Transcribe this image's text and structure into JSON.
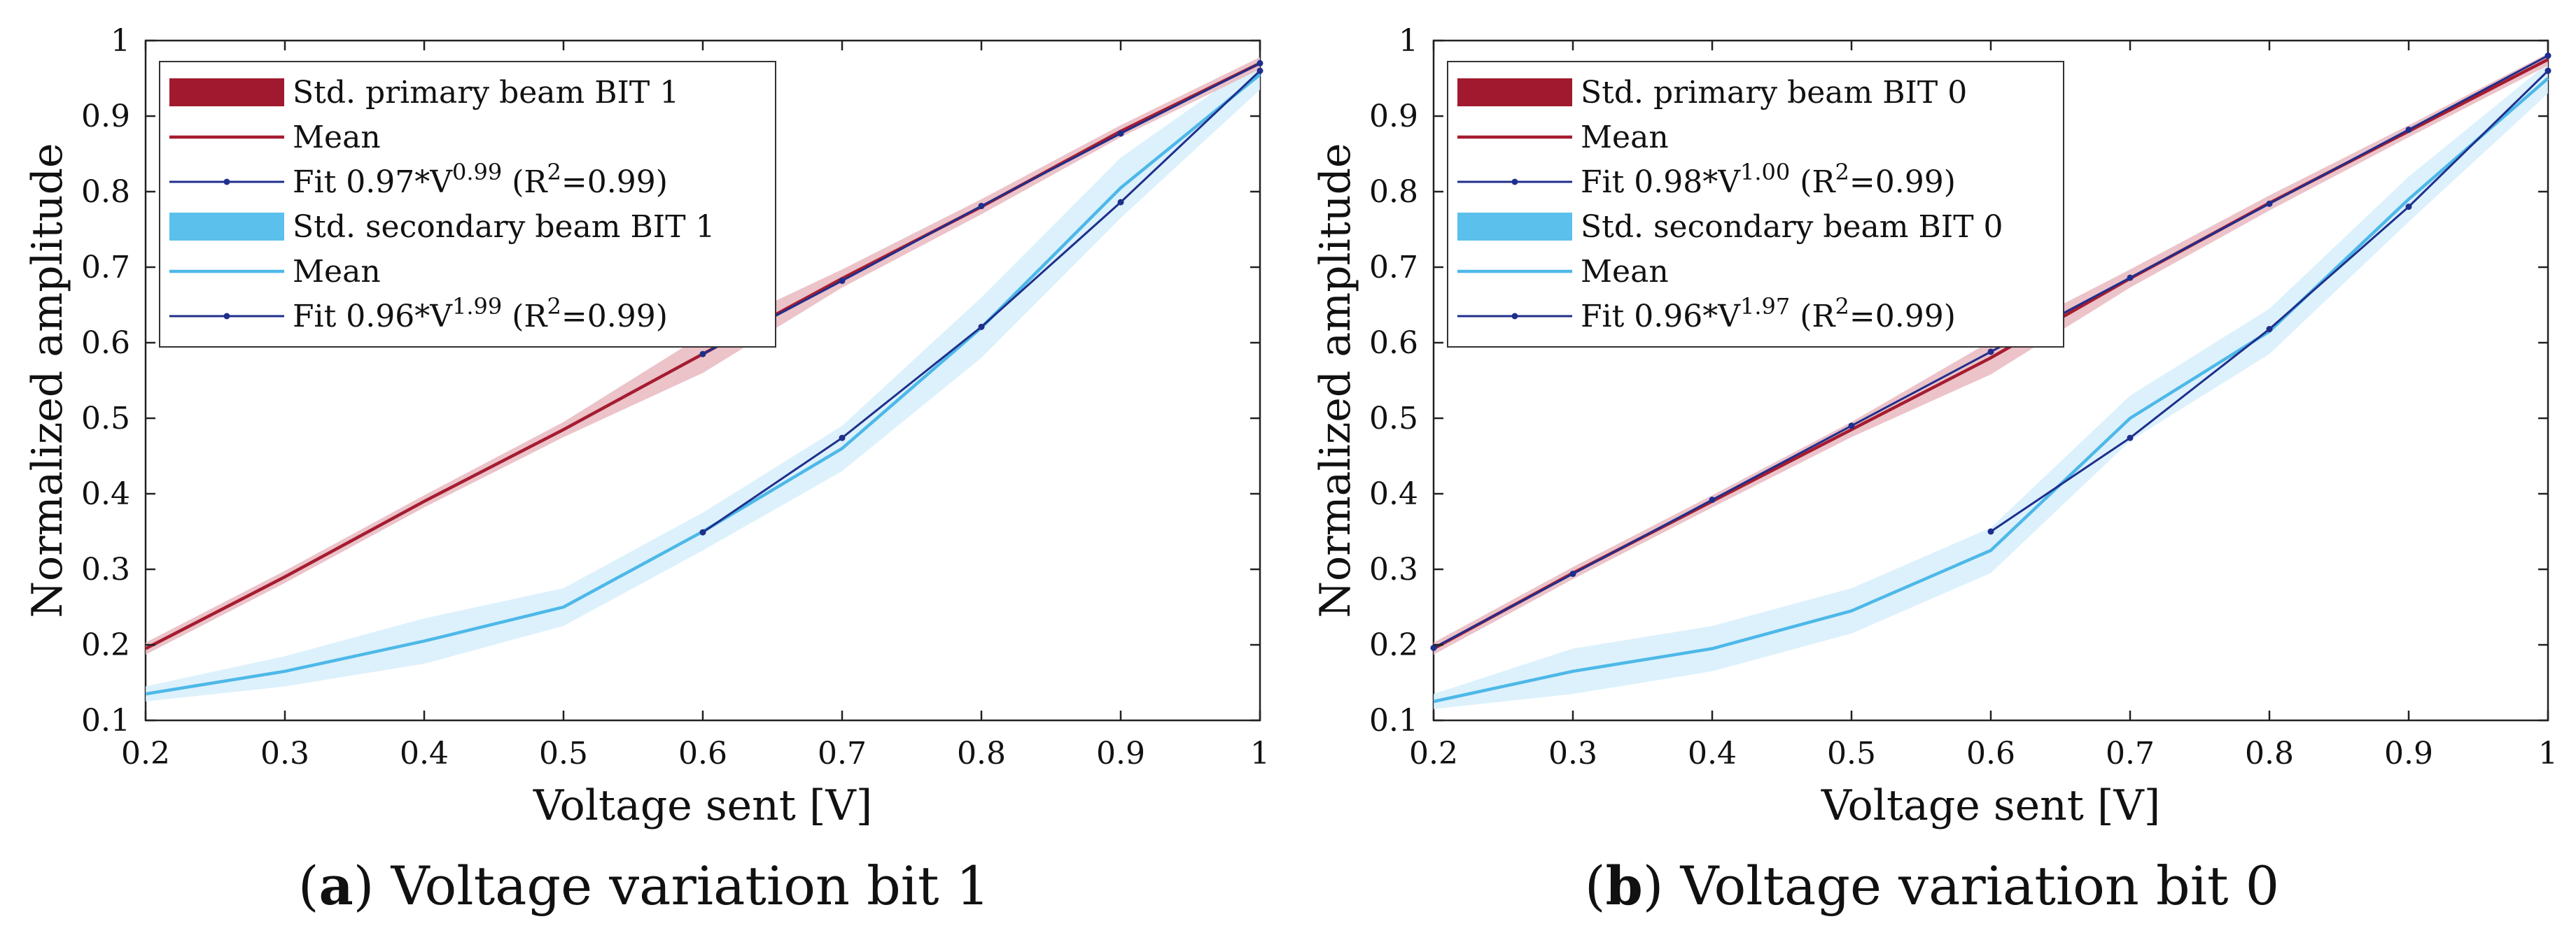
{
  "colors": {
    "primary_band": "#a0192e",
    "primary_band_light": "#e8b8bf",
    "primary_mean": "#a51c30",
    "secondary_band": "#5bc0eb",
    "secondary_band_light": "#d6effb",
    "secondary_mean": "#4db8e8",
    "fit": "#1f2f8c",
    "axis": "#222222"
  },
  "chart_data": [
    {
      "type": "line",
      "caption_letter": "a",
      "caption_text": "Voltage variation bit 1",
      "xlabel": "Voltage sent [V]",
      "ylabel": "Normalized amplitude",
      "xlim": [
        0.2,
        1
      ],
      "ylim": [
        0.1,
        1
      ],
      "x_ticks": [
        "0.2",
        "0.3",
        "0.4",
        "0.5",
        "0.6",
        "0.7",
        "0.8",
        "0.9",
        "1"
      ],
      "y_ticks": [
        "0.1",
        "0.2",
        "0.3",
        "0.4",
        "0.5",
        "0.6",
        "0.7",
        "0.8",
        "0.9",
        "1"
      ],
      "grid": false,
      "legend_position": "top-left",
      "legend": [
        {
          "kind": "band",
          "color": "primary_band",
          "label": "Std. primary beam BIT 1"
        },
        {
          "kind": "line",
          "color": "primary_mean",
          "label": "Mean"
        },
        {
          "kind": "fit",
          "color": "fit",
          "label": "Fit 0.97*V",
          "sup": "0.99",
          "tail": " (R",
          "sup2": "2",
          "tail2": "=0.99)"
        },
        {
          "kind": "band",
          "color": "secondary_band",
          "label": "Std. secondary beam BIT 1"
        },
        {
          "kind": "line",
          "color": "secondary_mean",
          "label": "Mean"
        },
        {
          "kind": "fit",
          "color": "fit",
          "label": "Fit 0.96*V",
          "sup": "1.99",
          "tail": " (R",
          "sup2": "2",
          "tail2": "=0.99)"
        }
      ],
      "x": [
        0.2,
        0.3,
        0.4,
        0.5,
        0.6,
        0.7,
        0.8,
        0.9,
        1.0
      ],
      "series": [
        {
          "name": "Std. primary beam BIT 1",
          "role": "primary",
          "mean": [
            0.195,
            0.29,
            0.39,
            0.485,
            0.585,
            0.685,
            0.78,
            0.88,
            0.97
          ],
          "std": [
            0.008,
            0.008,
            0.008,
            0.01,
            0.025,
            0.012,
            0.01,
            0.008,
            0.008
          ]
        },
        {
          "name": "Std. secondary beam BIT 1",
          "role": "secondary",
          "mean": [
            0.135,
            0.165,
            0.205,
            0.25,
            0.35,
            0.46,
            0.62,
            0.805,
            0.955
          ],
          "std": [
            0.01,
            0.02,
            0.03,
            0.025,
            0.025,
            0.03,
            0.04,
            0.04,
            0.02
          ]
        }
      ],
      "fits": [
        {
          "x": [
            0.6,
            0.7,
            0.8,
            0.9,
            1.0
          ],
          "y": [
            0.585,
            0.682,
            0.781,
            0.877,
            0.97
          ]
        },
        {
          "x": [
            0.6,
            0.7,
            0.8,
            0.9,
            1.0
          ],
          "y": [
            0.349,
            0.474,
            0.621,
            0.786,
            0.96
          ]
        }
      ]
    },
    {
      "type": "line",
      "caption_letter": "b",
      "caption_text": "Voltage variation bit 0",
      "xlabel": "Voltage sent [V]",
      "ylabel": "Normalized amplitude",
      "xlim": [
        0.2,
        1
      ],
      "ylim": [
        0.1,
        1
      ],
      "x_ticks": [
        "0.2",
        "0.3",
        "0.4",
        "0.5",
        "0.6",
        "0.7",
        "0.8",
        "0.9",
        "1"
      ],
      "y_ticks": [
        "0.1",
        "0.2",
        "0.3",
        "0.4",
        "0.5",
        "0.6",
        "0.7",
        "0.8",
        "0.9",
        "1"
      ],
      "grid": false,
      "legend_position": "top-left",
      "legend": [
        {
          "kind": "band",
          "color": "primary_band",
          "label": "Std. primary beam BIT 0"
        },
        {
          "kind": "line",
          "color": "primary_mean",
          "label": "Mean"
        },
        {
          "kind": "fit",
          "color": "fit",
          "label": "Fit 0.98*V",
          "sup": "1.00",
          "tail": " (R",
          "sup2": "2",
          "tail2": "=0.99)"
        },
        {
          "kind": "band",
          "color": "secondary_band",
          "label": "Std. secondary beam BIT 0"
        },
        {
          "kind": "line",
          "color": "secondary_mean",
          "label": "Mean"
        },
        {
          "kind": "fit",
          "color": "fit",
          "label": "Fit 0.96*V",
          "sup": "1.97",
          "tail": " (R",
          "sup2": "2",
          "tail2": "=0.99)"
        }
      ],
      "x": [
        0.2,
        0.3,
        0.4,
        0.5,
        0.6,
        0.7,
        0.8,
        0.9,
        1.0
      ],
      "series": [
        {
          "name": "Std. primary beam BIT 0",
          "role": "primary",
          "mean": [
            0.195,
            0.295,
            0.39,
            0.485,
            0.58,
            0.685,
            0.785,
            0.88,
            0.975
          ],
          "std": [
            0.008,
            0.008,
            0.008,
            0.01,
            0.022,
            0.012,
            0.01,
            0.008,
            0.008
          ]
        },
        {
          "name": "Std. secondary beam BIT 0",
          "role": "secondary",
          "mean": [
            0.125,
            0.165,
            0.195,
            0.245,
            0.325,
            0.5,
            0.615,
            0.79,
            0.95
          ],
          "std": [
            0.01,
            0.03,
            0.03,
            0.03,
            0.03,
            0.03,
            0.03,
            0.03,
            0.02
          ]
        }
      ],
      "fits": [
        {
          "x": [
            0.2,
            0.3,
            0.4,
            0.5,
            0.6,
            0.7,
            0.8,
            0.9,
            1.0
          ],
          "y": [
            0.196,
            0.294,
            0.392,
            0.49,
            0.588,
            0.686,
            0.784,
            0.882,
            0.98
          ]
        },
        {
          "x": [
            0.6,
            0.7,
            0.8,
            0.9,
            1.0
          ],
          "y": [
            0.35,
            0.474,
            0.618,
            0.78,
            0.96
          ]
        }
      ]
    }
  ]
}
